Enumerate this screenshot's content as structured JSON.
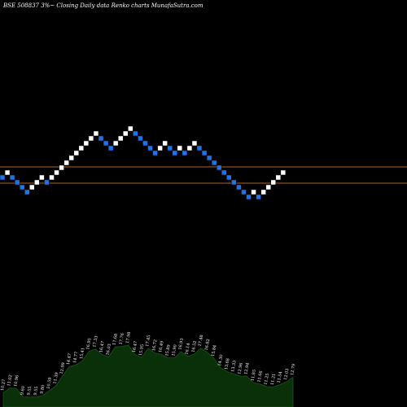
{
  "chart_data": {
    "type": "renko",
    "title": "BSE 508837 3%~ Closing Daily data Renko charts MunafaSutra.com",
    "colors": {
      "background": "#000000",
      "up_brick": "#ffffff",
      "down_brick": "#1e73e8",
      "reference_line": "#b0641e",
      "volume_fill": "#0a300a",
      "volume_line": "#1e6a1e",
      "text": "#ffffff"
    },
    "reference_levels": [
      10.55,
      9.55
    ],
    "bricks": [
      {
        "dir": "down",
        "value": 9.9
      },
      {
        "dir": "up",
        "value": 10.2
      },
      {
        "dir": "down",
        "value": 9.9
      },
      {
        "dir": "down",
        "value": 9.6
      },
      {
        "dir": "down",
        "value": 9.3
      },
      {
        "dir": "down",
        "value": 9.0
      },
      {
        "dir": "up",
        "value": 9.3
      },
      {
        "dir": "up",
        "value": 9.6
      },
      {
        "dir": "up",
        "value": 9.9
      },
      {
        "dir": "down",
        "value": 9.6
      },
      {
        "dir": "up",
        "value": 9.9
      },
      {
        "dir": "up",
        "value": 10.2
      },
      {
        "dir": "up",
        "value": 10.5
      },
      {
        "dir": "up",
        "value": 10.8
      },
      {
        "dir": "up",
        "value": 11.1
      },
      {
        "dir": "up",
        "value": 11.4
      },
      {
        "dir": "up",
        "value": 11.7
      },
      {
        "dir": "up",
        "value": 12.0
      },
      {
        "dir": "up",
        "value": 12.3
      },
      {
        "dir": "up",
        "value": 12.6
      },
      {
        "dir": "down",
        "value": 12.3
      },
      {
        "dir": "down",
        "value": 12.0
      },
      {
        "dir": "down",
        "value": 11.7
      },
      {
        "dir": "up",
        "value": 12.0
      },
      {
        "dir": "up",
        "value": 12.3
      },
      {
        "dir": "up",
        "value": 12.6
      },
      {
        "dir": "up",
        "value": 12.9
      },
      {
        "dir": "down",
        "value": 12.6
      },
      {
        "dir": "down",
        "value": 12.3
      },
      {
        "dir": "down",
        "value": 12.0
      },
      {
        "dir": "down",
        "value": 11.7
      },
      {
        "dir": "down",
        "value": 11.4
      },
      {
        "dir": "up",
        "value": 11.7
      },
      {
        "dir": "up",
        "value": 12.0
      },
      {
        "dir": "down",
        "value": 11.7
      },
      {
        "dir": "down",
        "value": 11.4
      },
      {
        "dir": "up",
        "value": 11.7
      },
      {
        "dir": "down",
        "value": 11.4
      },
      {
        "dir": "up",
        "value": 11.7
      },
      {
        "dir": "up",
        "value": 12.0
      },
      {
        "dir": "down",
        "value": 11.7
      },
      {
        "dir": "down",
        "value": 11.4
      },
      {
        "dir": "down",
        "value": 11.1
      },
      {
        "dir": "down",
        "value": 10.8
      },
      {
        "dir": "down",
        "value": 10.5
      },
      {
        "dir": "down",
        "value": 10.2
      },
      {
        "dir": "down",
        "value": 9.9
      },
      {
        "dir": "down",
        "value": 9.6
      },
      {
        "dir": "down",
        "value": 9.3
      },
      {
        "dir": "down",
        "value": 9.0
      },
      {
        "dir": "down",
        "value": 8.7
      },
      {
        "dir": "up",
        "value": 9.0
      },
      {
        "dir": "down",
        "value": 8.7
      },
      {
        "dir": "up",
        "value": 9.0
      },
      {
        "dir": "up",
        "value": 9.3
      },
      {
        "dir": "up",
        "value": 9.6
      },
      {
        "dir": "up",
        "value": 9.9
      },
      {
        "dir": "up",
        "value": 10.2
      }
    ],
    "volume_labels": [
      "10.27",
      "11.02",
      "10.96",
      "9.60",
      "9.55",
      "9.55",
      "9.80",
      "10.59",
      "11.39",
      "12.99",
      "14.47",
      "14.77",
      "15.41",
      "16.95",
      "17.33",
      "16.47",
      "16.03",
      "17.68",
      "17.76",
      "17.98",
      "16.47",
      "15.95",
      "17.45",
      "16.72",
      "16.49",
      "15.89",
      "15.90",
      "16.93",
      "16.14",
      "16.52",
      "17.48",
      "16.82",
      "15.84",
      "14.30",
      "13.68",
      "13.33",
      "12.96",
      "12.94",
      "11.85",
      "11.66",
      "11.25",
      "11.21",
      "11.54",
      "12.03",
      "12.79"
    ]
  }
}
